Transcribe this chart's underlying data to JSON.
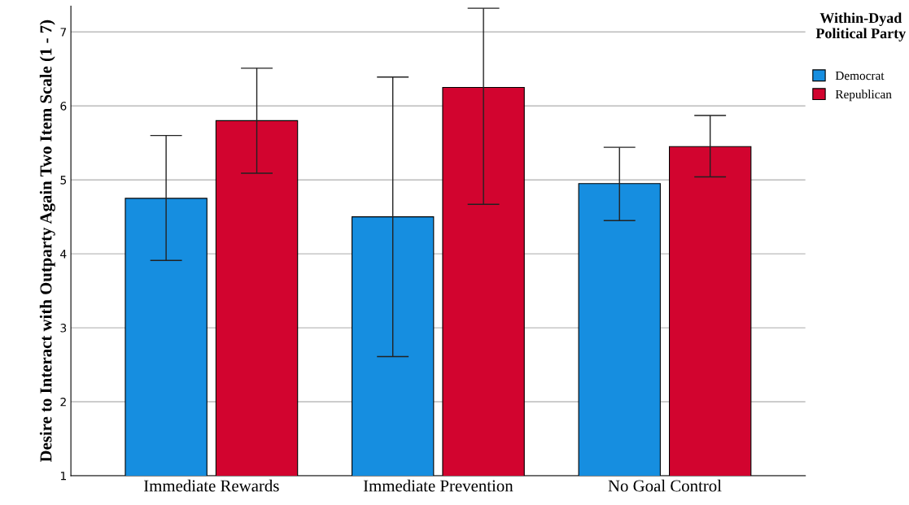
{
  "chart_data": {
    "type": "bar",
    "ylabel": "Desire to Interact with Outparty Again Two Item Scale (1 - 7)",
    "legend_title": "Within-Dyad Political Party",
    "categories": [
      "Immediate Rewards",
      "Immediate Prevention",
      "No Goal Control"
    ],
    "series": [
      {
        "name": "Democrat",
        "color": "#168ee0",
        "values": [
          4.75,
          4.5,
          4.95
        ],
        "errors": [
          [
            3.91,
            5.6
          ],
          [
            2.61,
            6.39
          ],
          [
            4.45,
            5.44
          ]
        ]
      },
      {
        "name": "Republican",
        "color": "#d2042f",
        "values": [
          5.8,
          6.25,
          5.45
        ],
        "errors": [
          [
            5.09,
            6.51
          ],
          [
            4.67,
            7.32
          ],
          [
            5.04,
            5.87
          ]
        ]
      }
    ],
    "ylim": [
      1,
      7.35
    ],
    "yticks": [
      1,
      2,
      3,
      4,
      5,
      6,
      7
    ],
    "grid": "y",
    "legend": "top right"
  }
}
